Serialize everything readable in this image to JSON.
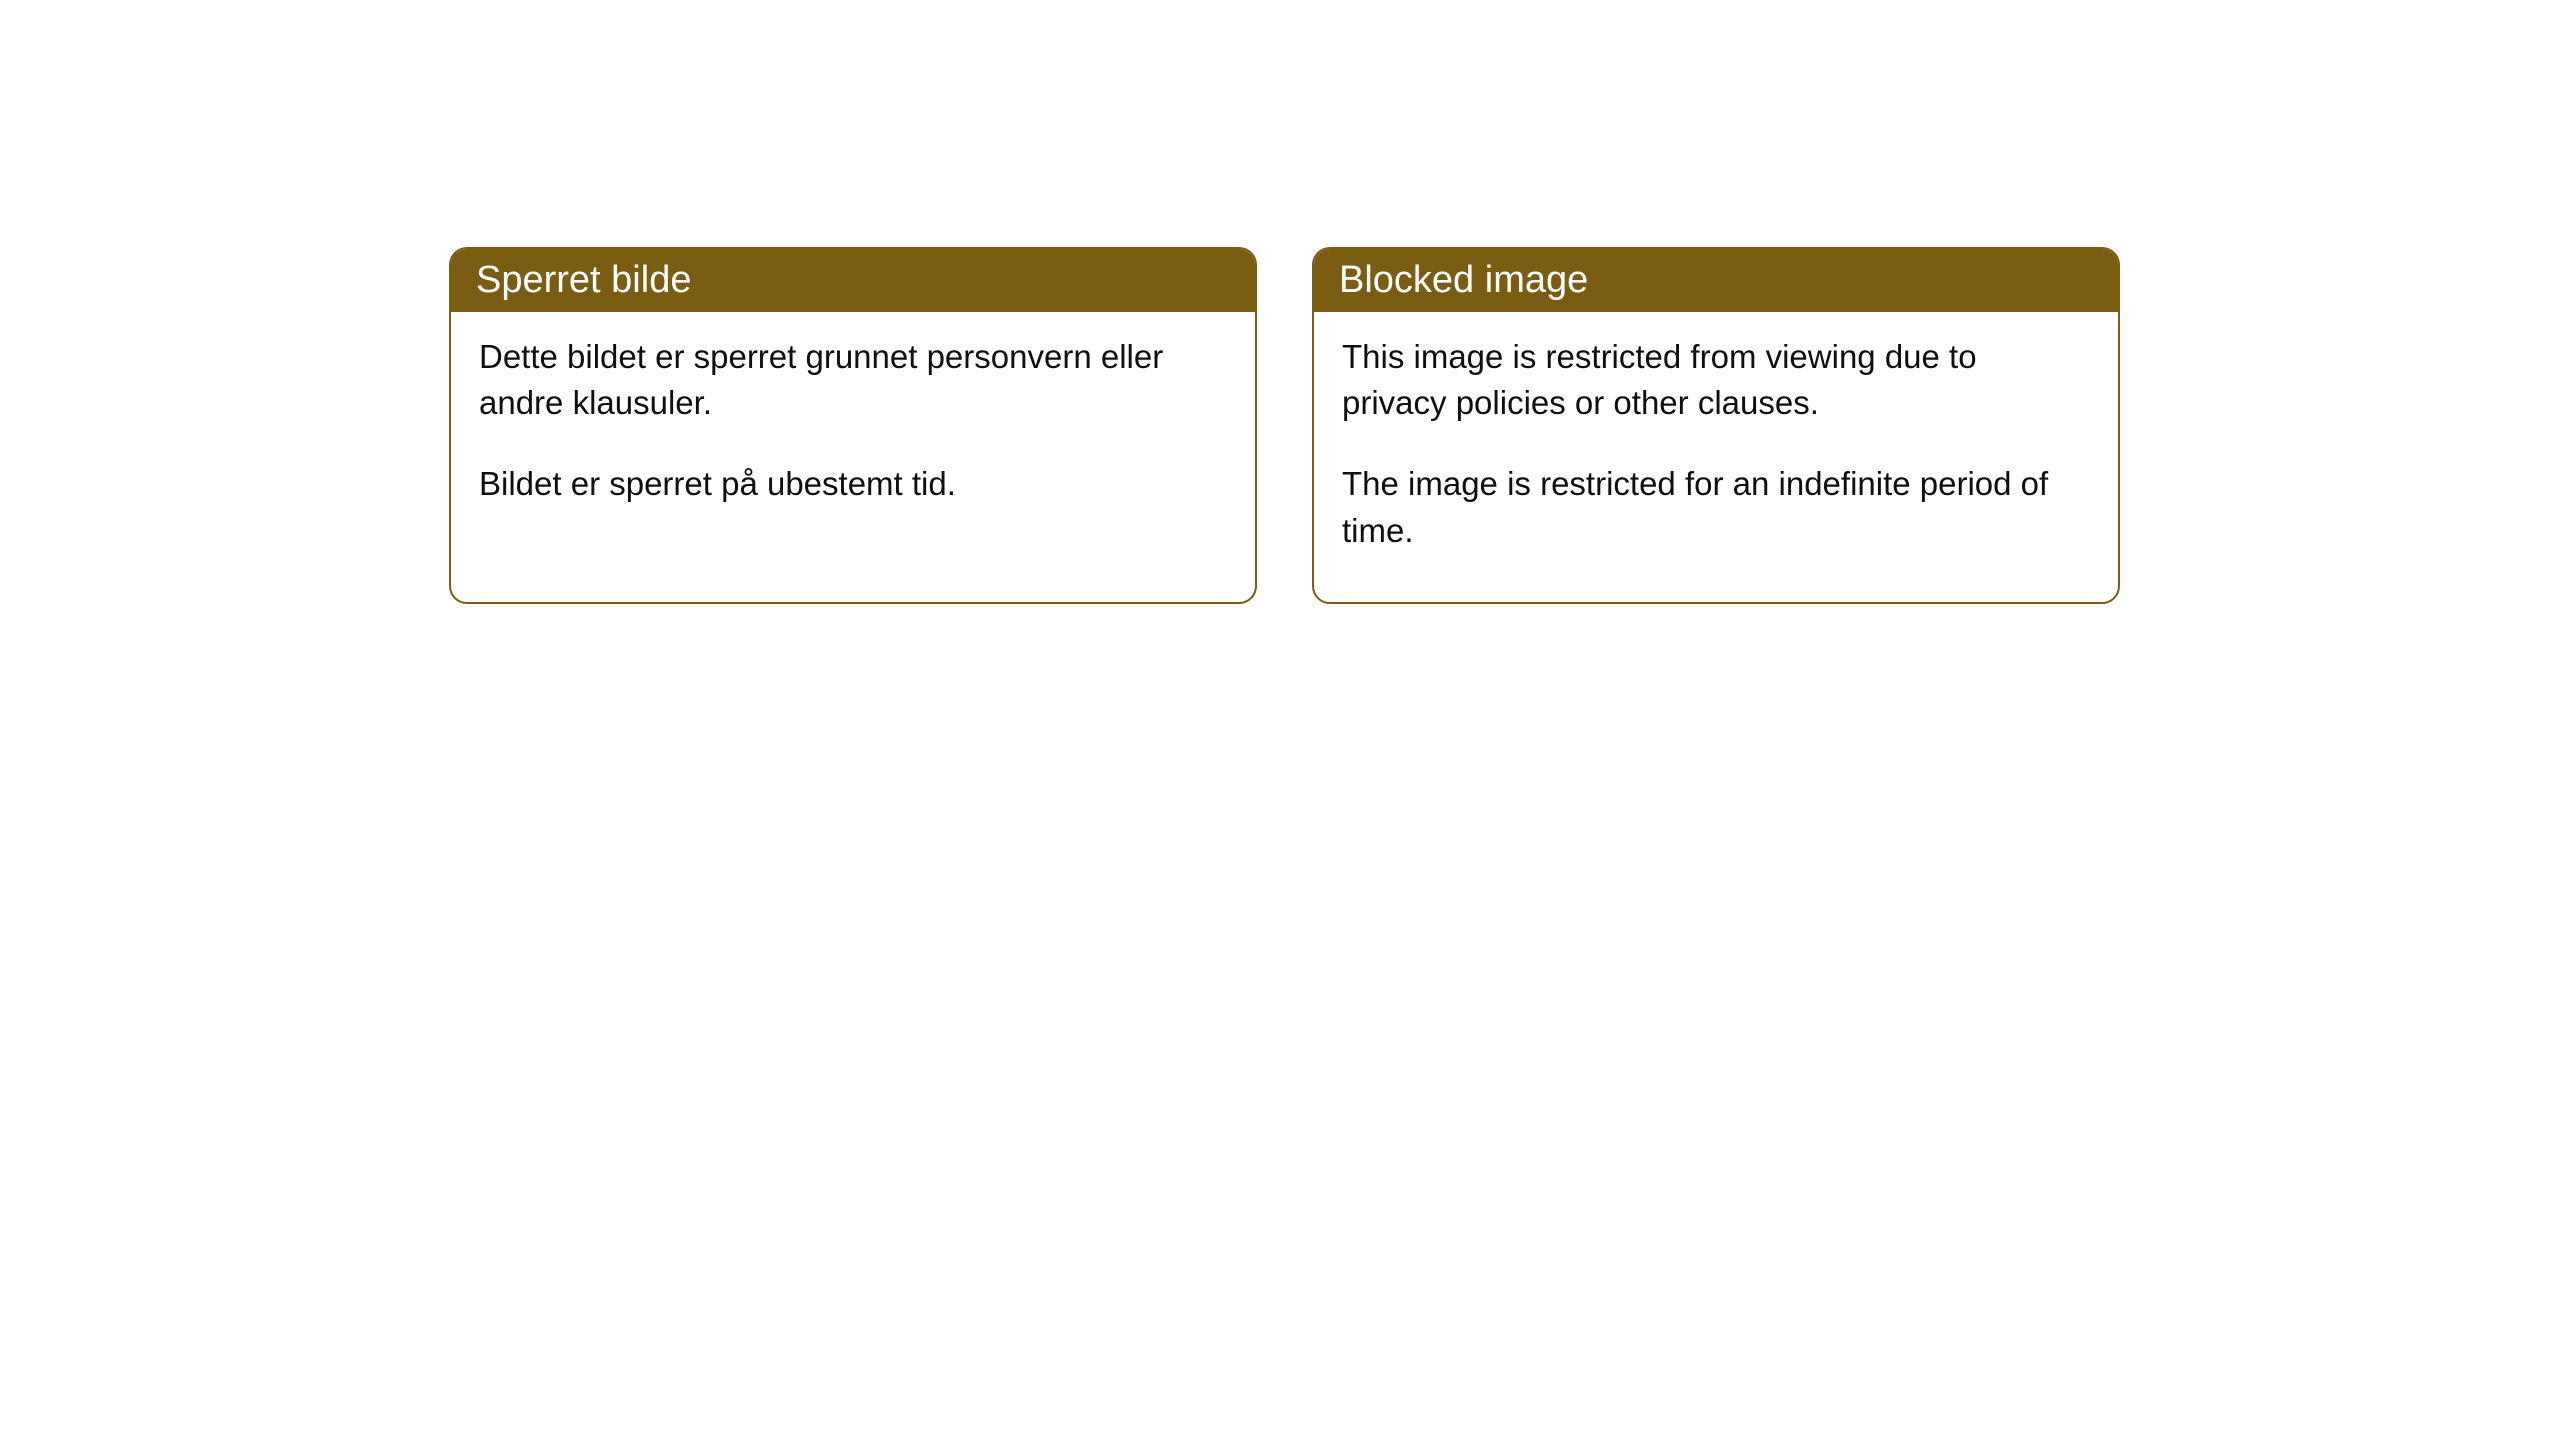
{
  "cards": [
    {
      "title": "Sperret bilde",
      "paragraph1": "Dette bildet er sperret grunnet personvern eller andre klausuler.",
      "paragraph2": "Bildet er sperret på ubestemt tid."
    },
    {
      "title": "Blocked image",
      "paragraph1": "This image is restricted from viewing due to privacy policies or other clauses.",
      "paragraph2": "The image is restricted for an indefinite period of time."
    }
  ],
  "styling": {
    "header_background": "#7a5d13",
    "header_text_color": "#ffffff",
    "border_color": "#7a5d13",
    "body_background": "#ffffff",
    "body_text_color": "#0f0f0f",
    "border_radius": 18,
    "header_fontsize": 38,
    "body_fontsize": 33
  }
}
